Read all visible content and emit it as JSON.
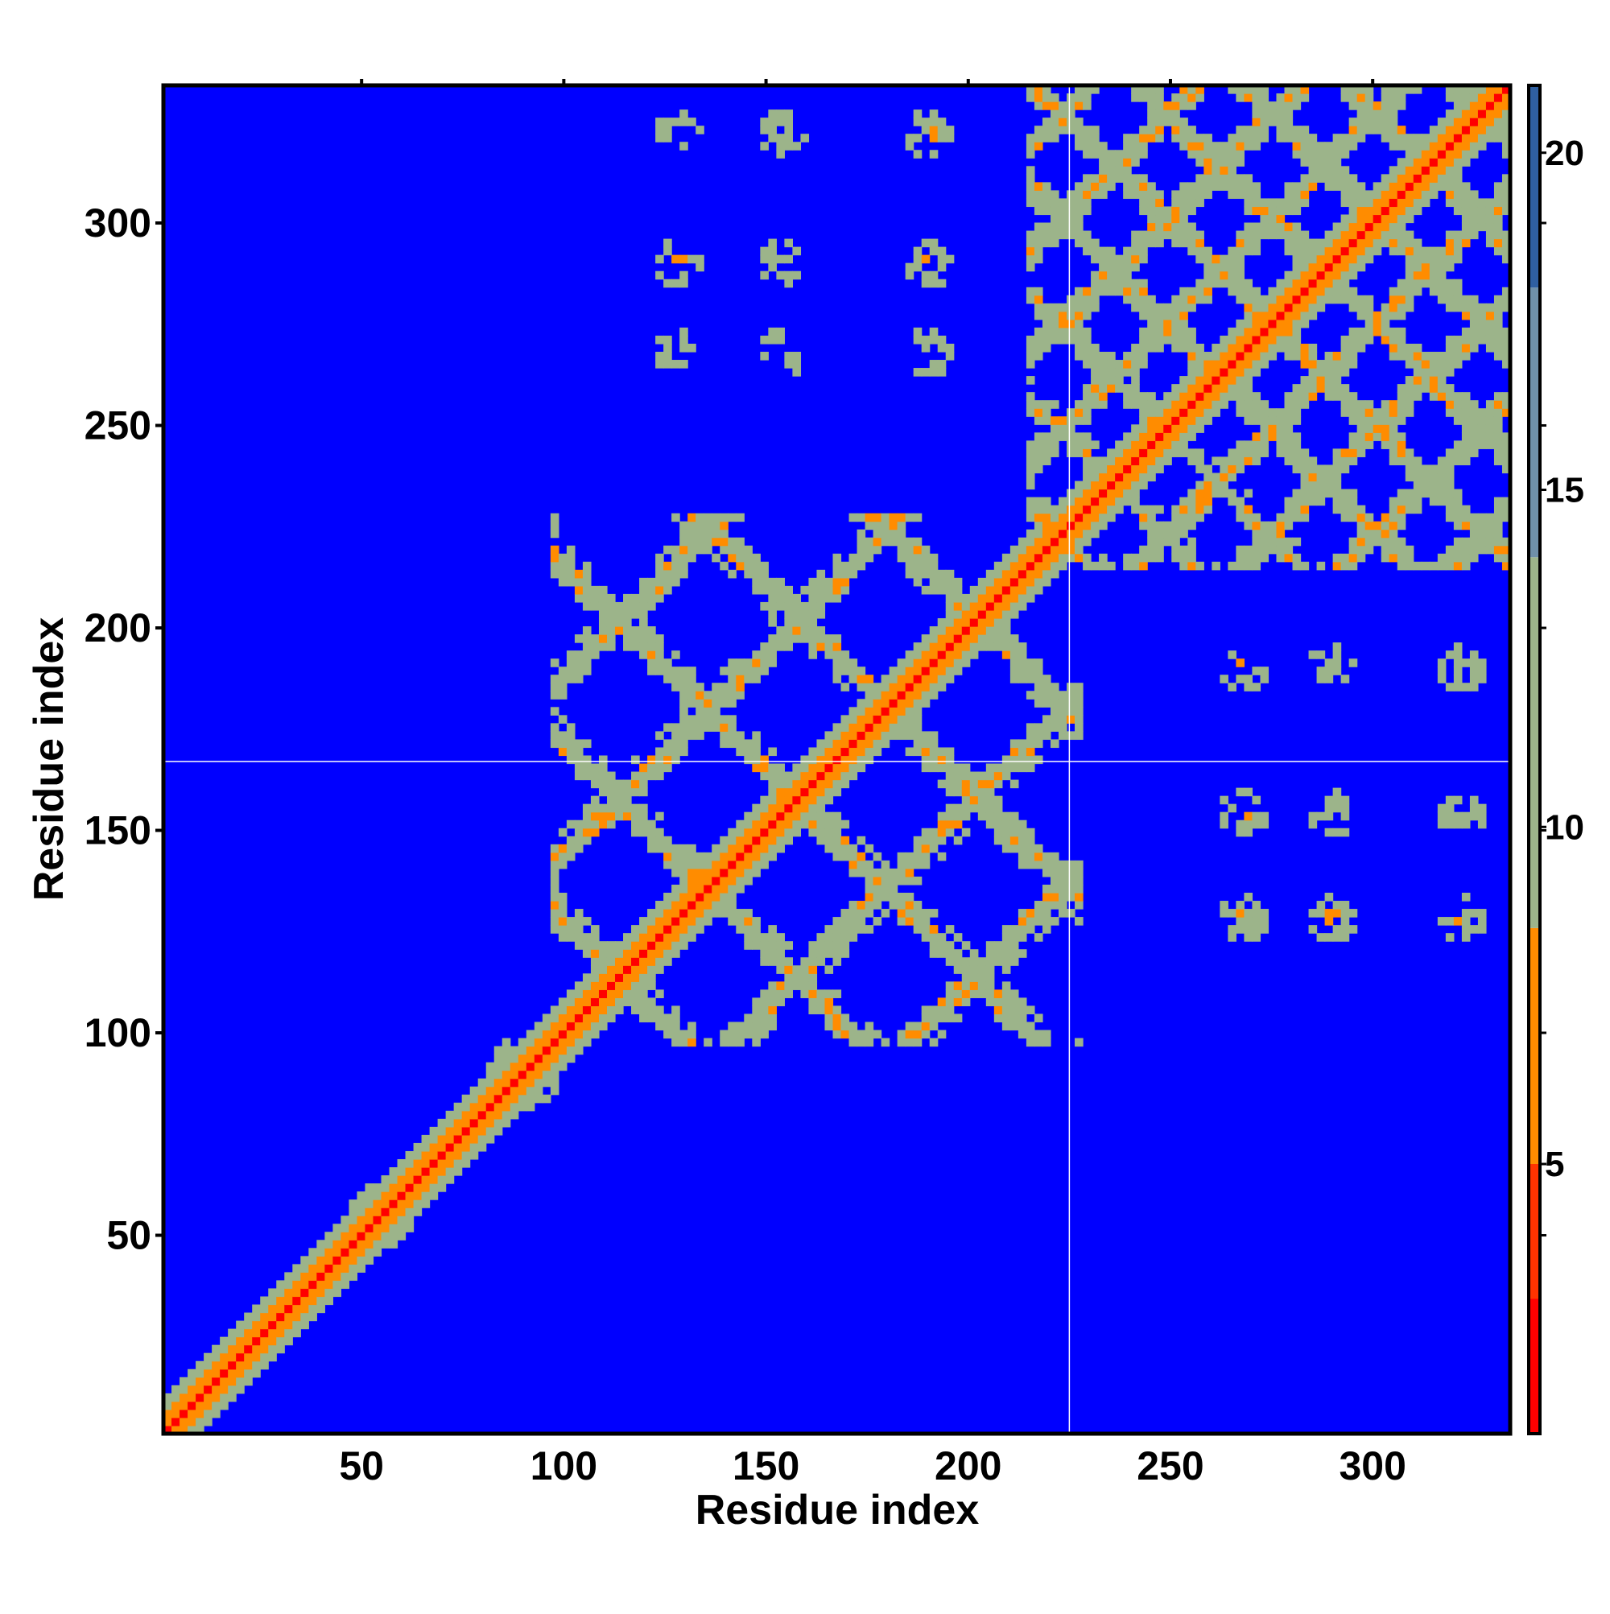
{
  "chart_data": {
    "type": "heatmap",
    "title": "",
    "xlabel": "Residue index",
    "ylabel": "Residue index",
    "xlim": [
      1,
      334
    ],
    "ylim": [
      1,
      334
    ],
    "x_ticks": [
      50,
      100,
      150,
      200,
      250,
      300
    ],
    "y_ticks": [
      50,
      100,
      150,
      200,
      250,
      300
    ],
    "x_tick_labels": [
      "50",
      "100",
      "150",
      "200",
      "250",
      "300"
    ],
    "y_tick_labels": [
      "50",
      "100",
      "150",
      "200",
      "250",
      "300"
    ],
    "colorbar": {
      "range": [
        1,
        21
      ],
      "ticks": [
        5,
        10,
        15,
        20
      ],
      "tick_labels": [
        "5",
        "10",
        "15",
        "20"
      ],
      "colors": {
        "low": "#ff0000",
        "mid_low": "#ff8c00",
        "mid": "#9cb48a",
        "high": "#2f5fa0",
        "background": "#0000ff"
      }
    },
    "domain_boundaries": [
      {
        "axis": "x",
        "value": 225
      },
      {
        "axis": "y",
        "value": 167
      }
    ],
    "grid": false,
    "description_values": {
      "diagonal_band_value": 2,
      "background_value": 21,
      "domain1_block": [
        [
          97,
          227
        ],
        [
          97,
          227
        ]
      ],
      "domain2_block": [
        [
          215,
          334
        ],
        [
          215,
          334
        ]
      ]
    }
  }
}
